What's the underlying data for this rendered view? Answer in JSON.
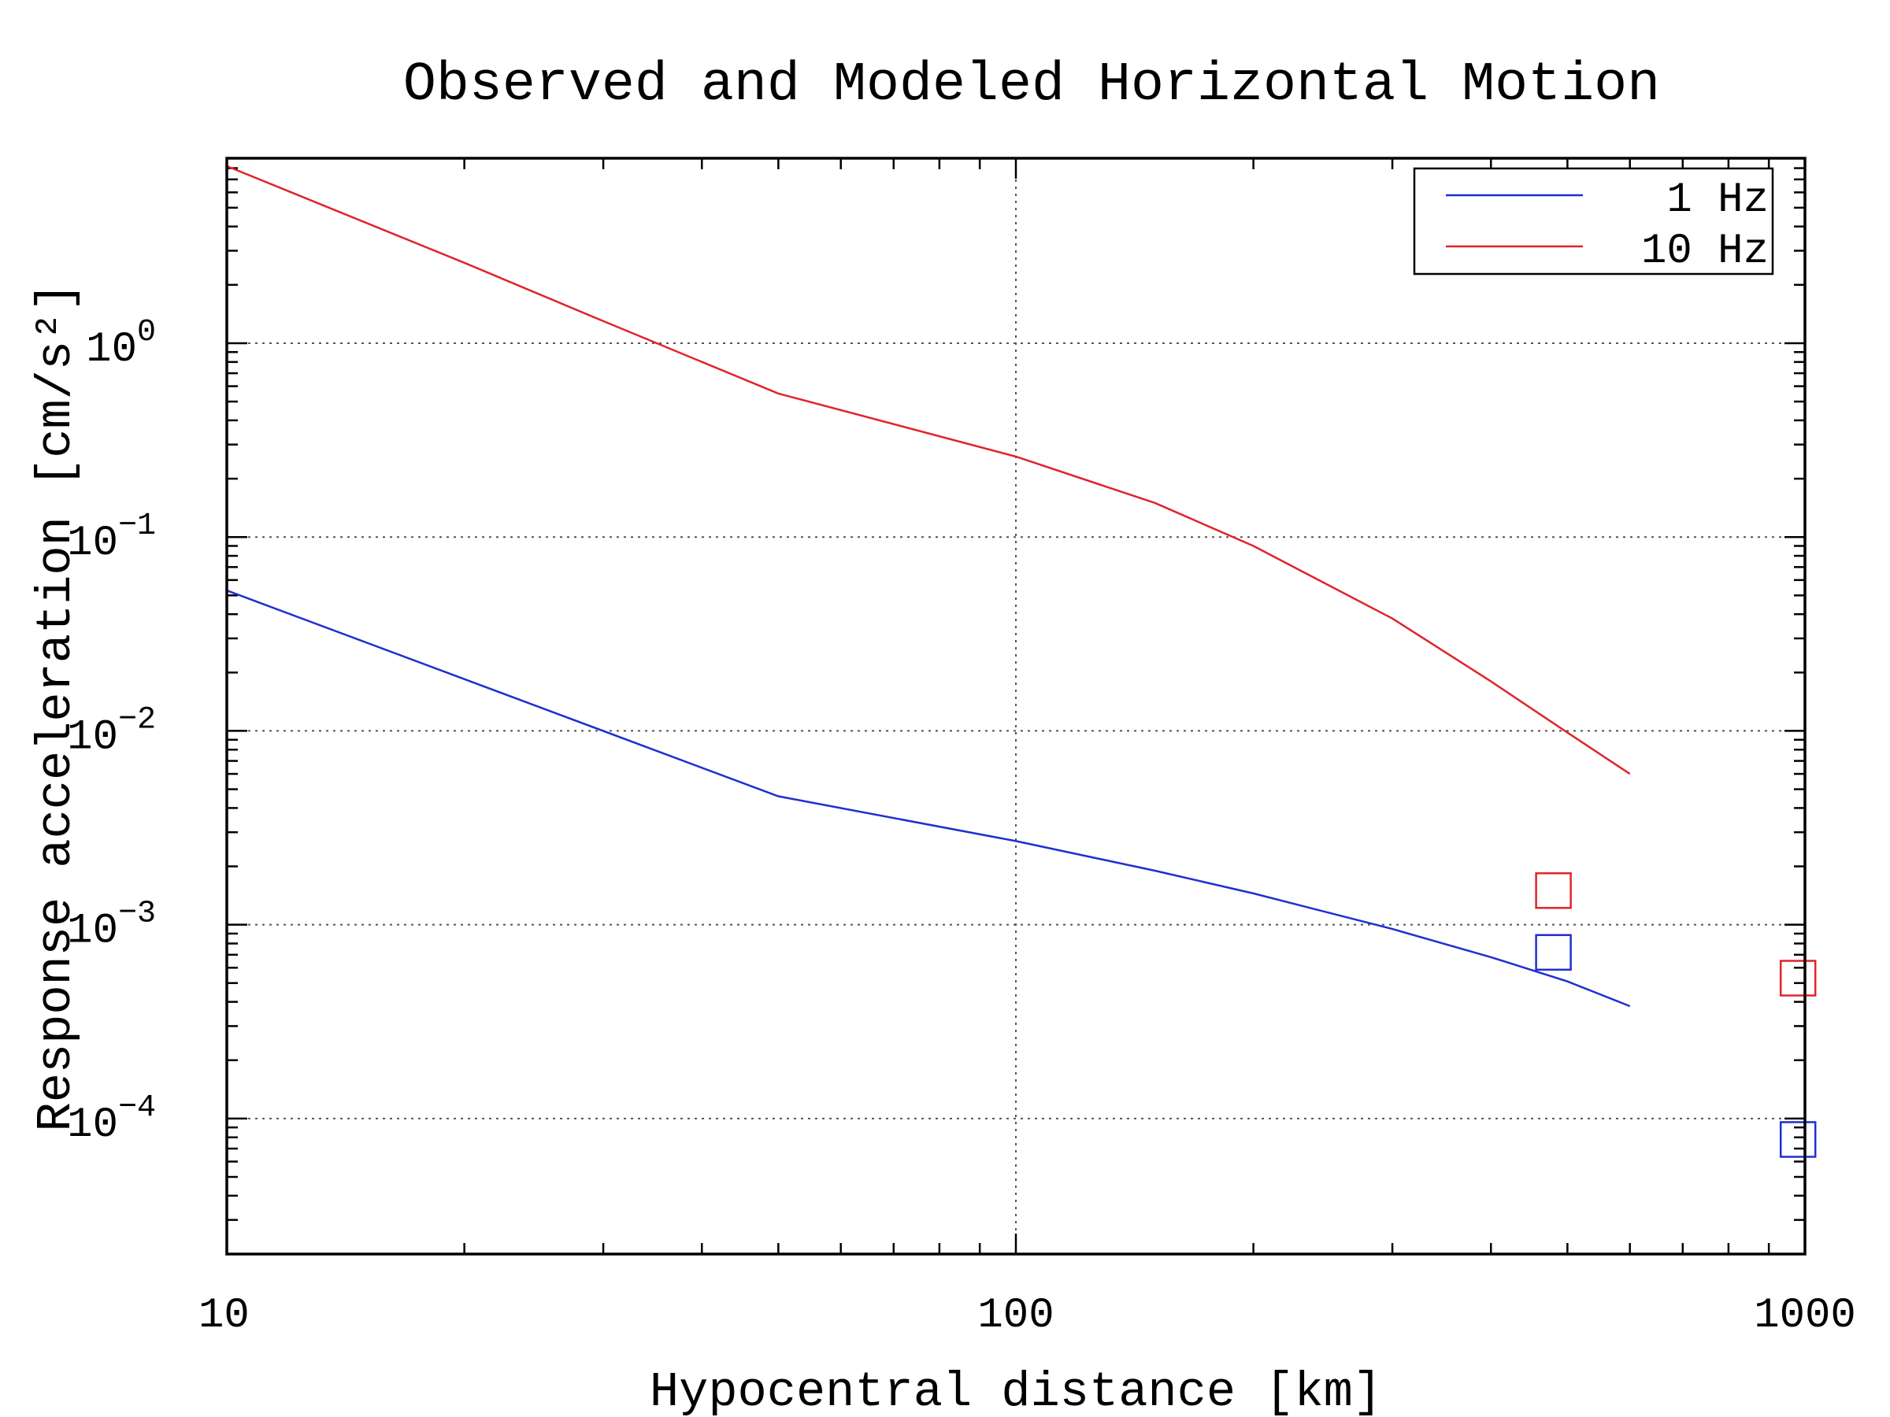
{
  "chart_data": {
    "type": "line",
    "title": "Observed and Modeled Horizontal Motion",
    "xlabel": "Hypocentral distance [km]",
    "ylabel": "Response acceleration [cm/s²]",
    "xscale": "log",
    "yscale": "log",
    "xlim": [
      10,
      1000
    ],
    "ylim": [
      2e-05,
      9
    ],
    "x_ticks": [
      {
        "value": 10,
        "label": "10"
      },
      {
        "value": 100,
        "label": "100"
      },
      {
        "value": 1000,
        "label": "1000"
      }
    ],
    "y_ticks": [
      {
        "value": 1,
        "base": "10",
        "exp": "0"
      },
      {
        "value": 0.1,
        "base": "10",
        "exp": "−1"
      },
      {
        "value": 0.01,
        "base": "10",
        "exp": "−2"
      },
      {
        "value": 0.001,
        "base": "10",
        "exp": "−3"
      },
      {
        "value": 0.0001,
        "base": "10",
        "exp": "−4"
      }
    ],
    "grid": true,
    "legend_position": "top-right",
    "series": [
      {
        "name": "1 Hz",
        "color": "#1f2fd0",
        "kind": "modeled",
        "x": [
          10,
          50,
          100,
          150,
          200,
          300,
          400,
          500,
          600
        ],
        "y": [
          0.053,
          0.0046,
          0.0027,
          0.0019,
          0.00145,
          0.00095,
          0.00068,
          0.00051,
          0.00038
        ]
      },
      {
        "name": "10 Hz",
        "color": "#e0242b",
        "kind": "modeled",
        "x": [
          10,
          20,
          30,
          50,
          100,
          150,
          200,
          300,
          400,
          500,
          600
        ],
        "y": [
          8.2,
          2.6,
          1.3,
          0.55,
          0.26,
          0.15,
          0.09,
          0.038,
          0.018,
          0.0098,
          0.006
        ]
      }
    ],
    "observed": [
      {
        "series": "1 Hz",
        "color": "#1f2fd0",
        "x": 480,
        "y": 0.00072
      },
      {
        "series": "1 Hz",
        "color": "#1f2fd0",
        "x": 980,
        "y": 7.8e-05
      },
      {
        "series": "10 Hz",
        "color": "#e0242b",
        "x": 480,
        "y": 0.0015
      },
      {
        "series": "10 Hz",
        "color": "#e0242b",
        "x": 980,
        "y": 0.00053
      }
    ]
  }
}
